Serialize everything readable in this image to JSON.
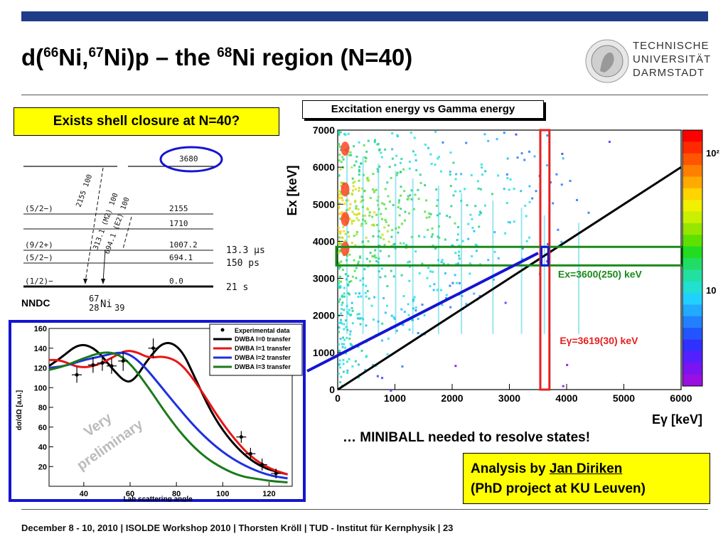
{
  "header": {
    "title_prefix": "d(",
    "title_sup1": "66",
    "title_mid1": "Ni,",
    "title_sup2": "67",
    "title_mid2": "Ni)p – the ",
    "title_sup3": "68",
    "title_end": "Ni region (N=40)",
    "logo_lines": [
      "TECHNISCHE",
      "UNIVERSITÄT",
      "DARMSTADT"
    ]
  },
  "question": "Exists shell closure at N=40?",
  "level_scheme": {
    "source": "NNDC",
    "nucleus_mass": "67",
    "nucleus_z": "28",
    "nucleus_symbol": "Ni",
    "nucleus_n": "39",
    "top_level": "3680",
    "levels": [
      {
        "spin": "(5/2−)",
        "energy": "2155",
        "halflife": ""
      },
      {
        "spin": "",
        "energy": "1710",
        "halflife": ""
      },
      {
        "spin": "(9/2+)",
        "energy": "1007.2",
        "halflife": "13.3  µs"
      },
      {
        "spin": "(5/2−)",
        "energy": "694.1",
        "halflife": "150  ps"
      },
      {
        "spin": "(1/2)−",
        "energy": "0.0",
        "halflife": "21  s"
      }
    ],
    "transitions": [
      "2155  100",
      "313.1 (M2)  100",
      "694.1 (E2)  100"
    ]
  },
  "chart_data": [
    {
      "type": "heatmap",
      "title": "Excitation energy vs Gamma energy",
      "xlabel": "Eγ [keV]",
      "ylabel": "Ex [keV]",
      "xlim": [
        0,
        6000
      ],
      "ylim": [
        0,
        7000
      ],
      "xticks": [
        "0",
        "1000",
        "2000",
        "3000",
        "4000",
        "5000",
        "6000"
      ],
      "yticks": [
        "0",
        "1000",
        "2000",
        "3000",
        "4000",
        "5000",
        "6000",
        "7000"
      ],
      "colorbar": [
        "10²",
        "10"
      ],
      "diagonal_line": {
        "x": [
          0,
          6000
        ],
        "y": [
          0,
          6000
        ]
      },
      "gamma_gate": {
        "label": "Eγ=3619(30) keV",
        "center": 3619,
        "range": [
          3590,
          3650
        ]
      },
      "ex_gate": {
        "label": "Ex=3600(250) keV",
        "range": [
          3350,
          3850
        ],
        "xrange": [
          0,
          6000
        ]
      },
      "colors": {
        "gamma_gate": "#e52020",
        "ex_gate": "#1a8a1a",
        "link": "#1515d0"
      }
    },
    {
      "type": "line",
      "xlabel": "Lab scattering angle",
      "ylabel": "dσ/dΩ [a.u.]",
      "xlim": [
        25,
        130
      ],
      "ylim": [
        0,
        160
      ],
      "xticks": [
        "40",
        "60",
        "80",
        "100",
        "120"
      ],
      "yticks": [
        "20",
        "40",
        "60",
        "80",
        "100",
        "120",
        "140",
        "160"
      ],
      "data": {
        "name": "Experimental data",
        "x": [
          37,
          44,
          48,
          52,
          57,
          70,
          108,
          112,
          117,
          123
        ],
        "y": [
          113,
          123,
          125,
          122,
          127,
          140,
          50,
          33,
          22,
          13
        ],
        "err": [
          8,
          8,
          8,
          8,
          10,
          10,
          6,
          6,
          6,
          5
        ]
      },
      "series": [
        {
          "name": "DWBA l=0 transfer",
          "color": "#000000",
          "x": [
            25,
            30,
            38,
            45,
            52,
            58,
            62,
            68,
            75,
            82,
            88,
            95,
            102,
            110,
            118,
            128
          ],
          "y": [
            122,
            130,
            145,
            140,
            120,
            105,
            108,
            130,
            148,
            140,
            110,
            75,
            50,
            30,
            18,
            12
          ]
        },
        {
          "name": "DWBA l=1 transfer",
          "color": "#e81414",
          "x": [
            25,
            30,
            38,
            45,
            52,
            58,
            63,
            68,
            75,
            82,
            90,
            98,
            105,
            112,
            120,
            128
          ],
          "y": [
            128,
            128,
            120,
            122,
            130,
            138,
            136,
            130,
            132,
            125,
            100,
            70,
            48,
            30,
            18,
            12
          ]
        },
        {
          "name": "DWBA l=2 transfer",
          "color": "#1e30e0",
          "x": [
            25,
            32,
            40,
            48,
            55,
            60,
            66,
            72,
            80,
            88,
            96,
            104,
            112,
            120,
            128
          ],
          "y": [
            120,
            122,
            128,
            132,
            136,
            134,
            122,
            105,
            82,
            60,
            42,
            28,
            18,
            11,
            8
          ]
        },
        {
          "name": "DWBA l=3 transfer",
          "color": "#1a7a1a",
          "x": [
            25,
            32,
            40,
            48,
            54,
            60,
            68,
            76,
            84,
            92,
            100,
            108,
            116,
            122,
            128
          ],
          "y": [
            118,
            122,
            130,
            136,
            135,
            125,
            100,
            72,
            48,
            30,
            18,
            10,
            7,
            5,
            4
          ]
        }
      ],
      "watermark": [
        "Very",
        "preliminary"
      ],
      "frame_color": "#1515d0"
    }
  ],
  "note_miniball": "… MINIBALL needed to resolve states!",
  "analysis": {
    "line1_prefix": "Analysis by ",
    "name": "Jan Diriken",
    "line2": "(PhD project at KU Leuven)"
  },
  "footer": "December 8 - 10, 2010  |  ISOLDE Workshop 2010  | Thorsten Kröll | TUD - Institut für Kernphysik  |  23"
}
